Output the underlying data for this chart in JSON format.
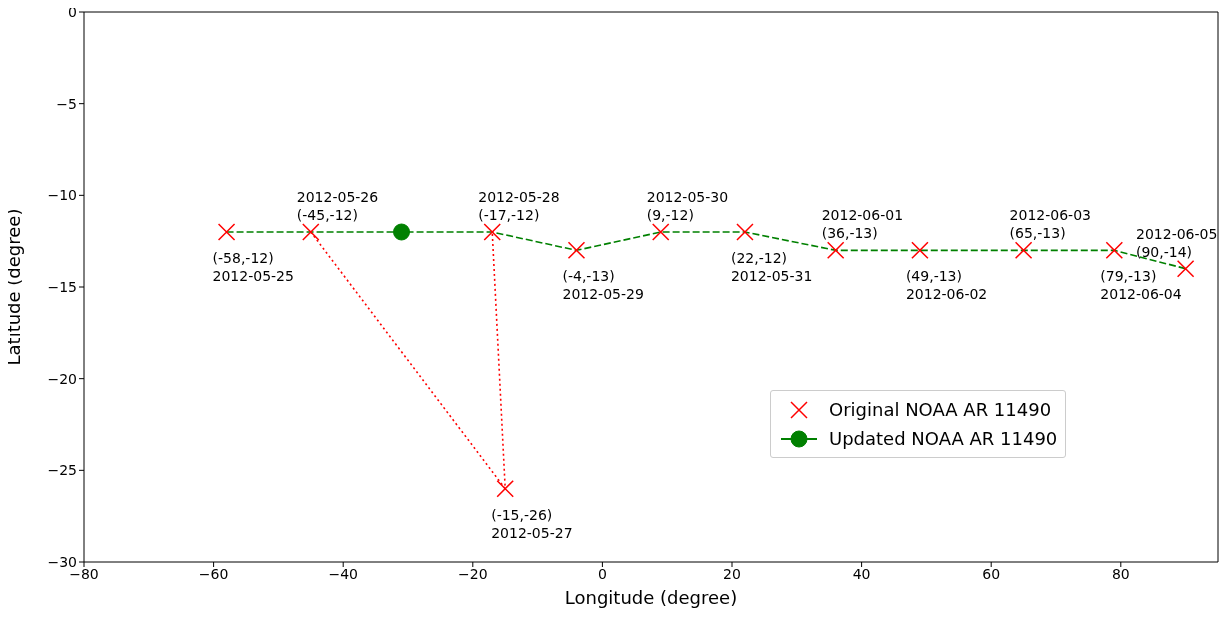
{
  "chart_data": {
    "type": "line",
    "xlabel": "Longitude (degree)",
    "ylabel": "Latitude (degree)",
    "xlim": [
      -80,
      95
    ],
    "xticks": [
      -80,
      -60,
      -40,
      -20,
      0,
      20,
      40,
      60,
      80
    ],
    "ylim": [
      -30,
      0
    ],
    "yticks": [
      -30,
      -25,
      -20,
      -15,
      -10,
      -5,
      0
    ],
    "grid": false,
    "legend": "right",
    "series": [
      {
        "color": "#ff0000",
        "line_style": "dotted",
        "marker": "none",
        "x": [
          -45,
          -15,
          -17
        ],
        "values": [
          -12,
          -26,
          -12
        ]
      },
      {
        "color": "#008000",
        "line_style": "dashed",
        "marker": "none",
        "x": [
          -58,
          -45,
          -31,
          -17,
          -4,
          9,
          22,
          36,
          49,
          65,
          79,
          90
        ],
        "values": [
          -12,
          -12,
          -12,
          -12,
          -13,
          -12,
          -12,
          -13,
          -13,
          -13,
          -13,
          -14
        ]
      },
      {
        "name": "Original NOAA AR 11490",
        "type": "scatter",
        "color": "#ff0000",
        "marker": "cross",
        "x": [
          -58,
          -45,
          -15,
          -17,
          -4,
          9,
          22,
          36,
          49,
          65,
          79,
          90
        ],
        "values": [
          -12,
          -12,
          -26,
          -12,
          -13,
          -12,
          -12,
          -13,
          -13,
          -13,
          -13,
          -14
        ]
      },
      {
        "name": "Updated NOAA AR 11490",
        "color": "#008000",
        "line_style": "dashed",
        "marker": "circle",
        "x": [
          -31
        ],
        "values": [
          -12
        ]
      }
    ],
    "annotations": [
      {
        "text": "(-58,-12)\n2012-05-25",
        "x": -58,
        "y": -12
      },
      {
        "text": "2012-05-26\n(-45,-12)",
        "x": -45,
        "y": -12
      },
      {
        "text": "(-15,-26)\n2012-05-27",
        "x": -15,
        "y": -26
      },
      {
        "text": "2012-05-28\n(-17,-12)",
        "x": -17,
        "y": -12
      },
      {
        "text": "(-4,-13)\n2012-05-29",
        "x": -4,
        "y": -13
      },
      {
        "text": "2012-05-30\n(9,-12)",
        "x": 9,
        "y": -12
      },
      {
        "text": "(22,-12)\n2012-05-31",
        "x": 22,
        "y": -12
      },
      {
        "text": "2012-06-01\n(36,-13)",
        "x": 36,
        "y": -13
      },
      {
        "text": "(49,-13)\n2012-06-02",
        "x": 49,
        "y": -13
      },
      {
        "text": "2012-06-03\n(65,-13)",
        "x": 65,
        "y": -13
      },
      {
        "text": "(79,-13)\n2012-06-04",
        "x": 79,
        "y": -13
      },
      {
        "text": "2012-06-05\n(90,-14)",
        "x": 90,
        "y": -14
      }
    ]
  }
}
